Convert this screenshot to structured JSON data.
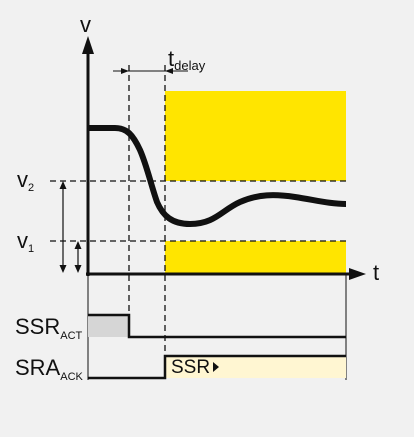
{
  "axis": {
    "y_label": "v",
    "x_label": "t"
  },
  "levels": [
    {
      "id": "v2",
      "base": "v",
      "sub": "2"
    },
    {
      "id": "v1",
      "base": "v",
      "sub": "1"
    }
  ],
  "delay": {
    "base": "t",
    "sub": "delay"
  },
  "signals": [
    {
      "id": "ssr-act",
      "base": "SSR",
      "sub": "ACT"
    },
    {
      "id": "sra-ack",
      "base": "SRA",
      "sub": "ACK"
    }
  ],
  "ssr_block": {
    "label": "SSR"
  },
  "colors": {
    "background": "#f1f1f1",
    "band": "#ffe500",
    "line": "#111111",
    "act_fill": "#d6d6d6",
    "ssr_fill": "#fff6d2"
  }
}
